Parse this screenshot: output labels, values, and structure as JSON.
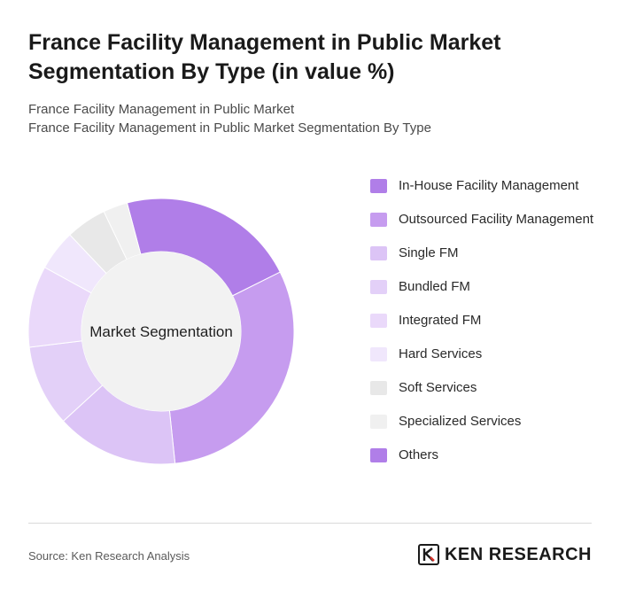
{
  "header": {
    "title": "France Facility Management in Public Market Segmentation By Type (in value %)",
    "subtitle_line1": "France Facility Management in Public Market",
    "subtitle_line2": "France Facility Management in Public Market Segmentation By Type"
  },
  "chart_data": {
    "type": "pie",
    "variant": "donut",
    "center_label": "Market Segmentation",
    "categories": [
      "In-House Facility Management",
      "Outsourced Facility Management",
      "Single FM",
      "Bundled FM",
      "Integrated FM",
      "Hard Services",
      "Soft Services",
      "Specialized Services",
      "Others"
    ],
    "values": [
      22,
      31,
      15,
      10,
      10,
      5,
      5,
      3,
      0
    ],
    "colors": [
      "#b07ee8",
      "#c69cef",
      "#dcc4f6",
      "#e3d0f8",
      "#ead9fa",
      "#f0e7fc",
      "#e8e8e8",
      "#f0f0f0",
      "#b07ee8"
    ],
    "legend_position": "right"
  },
  "footer": {
    "source": "Source: Ken Research Analysis",
    "brand": "KEN RESEARCH"
  }
}
